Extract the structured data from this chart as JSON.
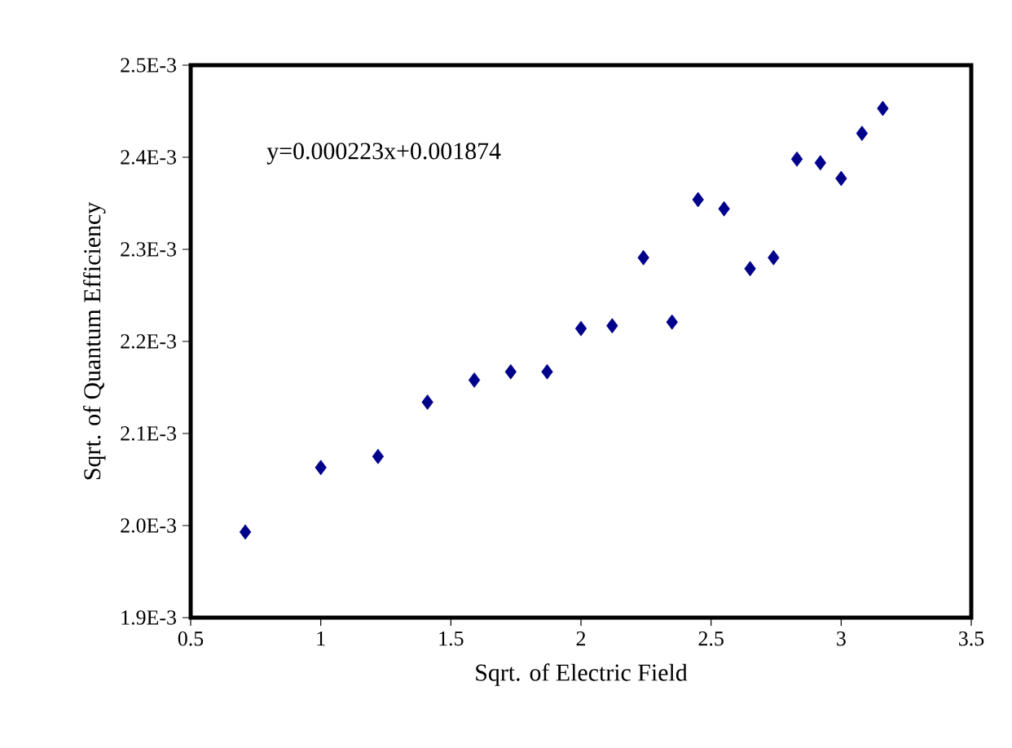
{
  "chart_data": {
    "type": "scatter",
    "xlabel": "Sqrt. of Electric Field",
    "ylabel": "Sqrt. of Quantum Efficiency",
    "annotations": [
      "y=0.000223x+0.001874"
    ],
    "x": [
      0.71,
      1.0,
      1.22,
      1.41,
      1.59,
      1.73,
      1.87,
      2.0,
      2.12,
      2.24,
      2.35,
      2.45,
      2.55,
      2.65,
      2.74,
      2.83,
      2.92,
      3.0,
      3.08,
      3.16
    ],
    "values": [
      0.001993,
      0.002063,
      0.002075,
      0.002134,
      0.002158,
      0.002167,
      0.002167,
      0.002214,
      0.002217,
      0.002291,
      0.002221,
      0.002354,
      0.002344,
      0.002279,
      0.002291,
      0.002398,
      0.002394,
      0.002377,
      0.002426,
      0.002453
    ],
    "color": "#00008b",
    "marker": "diamond",
    "grid": false,
    "xlim": [
      0.5,
      3.5
    ],
    "xticks": [
      0.5,
      1,
      1.5,
      2,
      2.5,
      3,
      3.5
    ],
    "ylim": [
      0.0019,
      0.0025
    ],
    "yticks": [
      {
        "value": 0.0019,
        "label": "1.9E-3"
      },
      {
        "value": 0.002,
        "label": "2.0E-3"
      },
      {
        "value": 0.0021,
        "label": "2.1E-3"
      },
      {
        "value": 0.0022,
        "label": "2.2E-3"
      },
      {
        "value": 0.0023,
        "label": "2.3E-3"
      },
      {
        "value": 0.0024,
        "label": "2.4E-3"
      },
      {
        "value": 0.0025,
        "label": "2.5E-3"
      }
    ]
  }
}
